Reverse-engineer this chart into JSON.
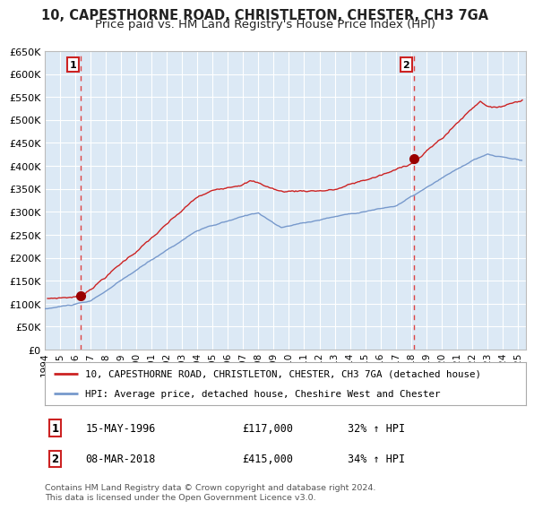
{
  "title": "10, CAPESTHORNE ROAD, CHRISTLETON, CHESTER, CH3 7GA",
  "subtitle": "Price paid vs. HM Land Registry's House Price Index (HPI)",
  "fig_bg_color": "#ffffff",
  "plot_bg_color": "#dce9f5",
  "grid_color": "#ffffff",
  "red_line_color": "#cc2222",
  "blue_line_color": "#7799cc",
  "marker_color": "#990000",
  "dashed_line_color": "#dd4444",
  "ylim": [
    0,
    650000
  ],
  "yticks": [
    0,
    50000,
    100000,
    150000,
    200000,
    250000,
    300000,
    350000,
    400000,
    450000,
    500000,
    550000,
    600000,
    650000
  ],
  "ytick_labels": [
    "£0",
    "£50K",
    "£100K",
    "£150K",
    "£200K",
    "£250K",
    "£300K",
    "£350K",
    "£400K",
    "£450K",
    "£500K",
    "£550K",
    "£600K",
    "£650K"
  ],
  "xlim_start": 1994.0,
  "xlim_end": 2025.5,
  "xtick_years": [
    1994,
    1995,
    1996,
    1997,
    1998,
    1999,
    2000,
    2001,
    2002,
    2003,
    2004,
    2005,
    2006,
    2007,
    2008,
    2009,
    2010,
    2011,
    2012,
    2013,
    2014,
    2015,
    2016,
    2017,
    2018,
    2019,
    2020,
    2021,
    2022,
    2023,
    2024,
    2025
  ],
  "sale1_x": 1996.37,
  "sale1_y": 117000,
  "sale1_label": "1",
  "sale1_date": "15-MAY-1996",
  "sale1_price": "£117,000",
  "sale1_hpi": "32% ↑ HPI",
  "sale2_x": 2018.18,
  "sale2_y": 415000,
  "sale2_label": "2",
  "sale2_date": "08-MAR-2018",
  "sale2_price": "£415,000",
  "sale2_hpi": "34% ↑ HPI",
  "legend_red_label": "10, CAPESTHORNE ROAD, CHRISTLETON, CHESTER, CH3 7GA (detached house)",
  "legend_blue_label": "HPI: Average price, detached house, Cheshire West and Chester",
  "footer_text": "Contains HM Land Registry data © Crown copyright and database right 2024.\nThis data is licensed under the Open Government Licence v3.0.",
  "title_fontsize": 10.5,
  "subtitle_fontsize": 9.5
}
